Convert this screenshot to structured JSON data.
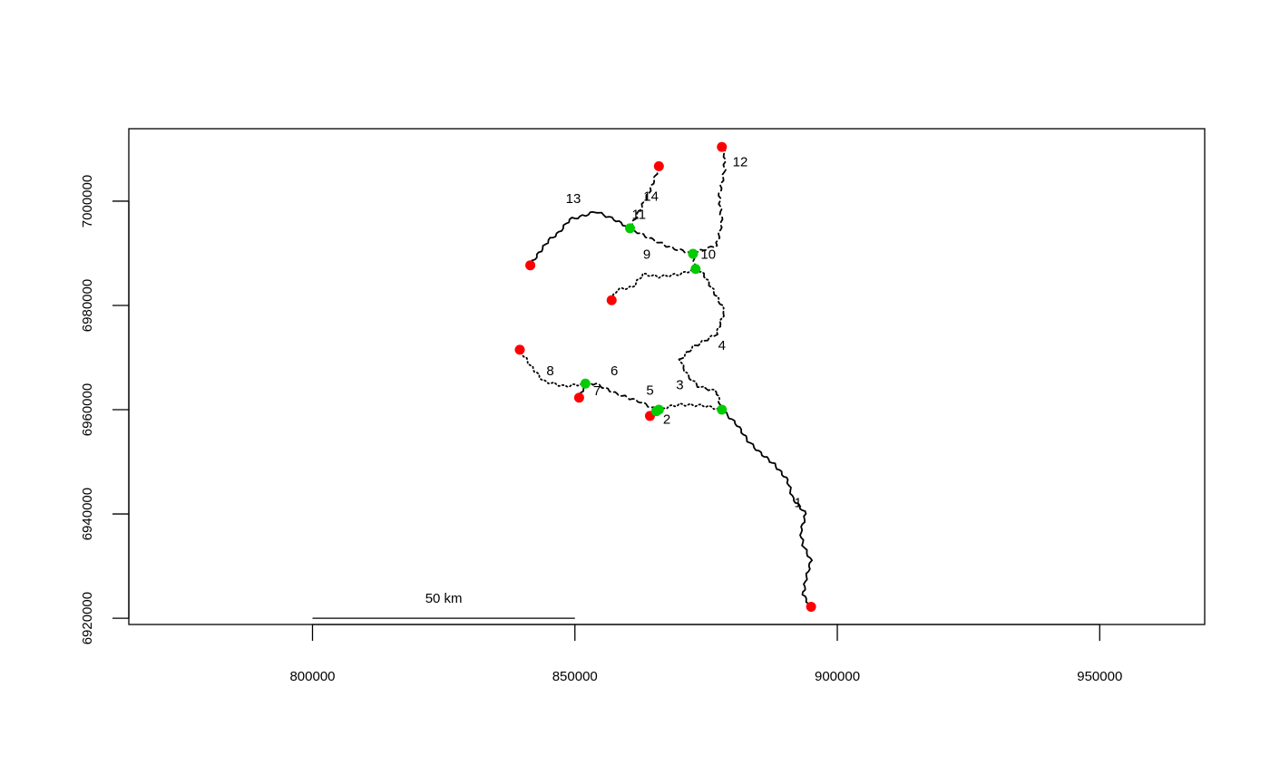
{
  "chart_data": {
    "type": "map",
    "title": "",
    "xlabel": "",
    "ylabel": "",
    "xlim": [
      765000,
      970000
    ],
    "ylim": [
      6918800,
      7013900
    ],
    "x_ticks": [
      {
        "value": 800000,
        "label": "800000"
      },
      {
        "value": 850000,
        "label": "850000"
      },
      {
        "value": 900000,
        "label": "900000"
      },
      {
        "value": 950000,
        "label": "950000"
      }
    ],
    "y_ticks": [
      {
        "value": 6920000,
        "label": "6920000"
      },
      {
        "value": 6940000,
        "label": "6940000"
      },
      {
        "value": 6960000,
        "label": "6960000"
      },
      {
        "value": 6980000,
        "label": "6980000"
      },
      {
        "value": 7000000,
        "label": "7000000"
      }
    ],
    "scale_bar": {
      "x_start": 800000,
      "x_end": 850000,
      "y": 6920000,
      "label": "50 km"
    },
    "colors": {
      "outlet": "#ff0000",
      "confluence": "#00cc00",
      "line": "#000000"
    },
    "segments": [
      {
        "id": "1",
        "style": "solid",
        "label_pos": [
          892500,
          6942000
        ],
        "points": [
          [
            895000,
            6922000
          ],
          [
            893500,
            6924500
          ],
          [
            894000,
            6927500
          ],
          [
            895000,
            6931000
          ],
          [
            893500,
            6934000
          ],
          [
            893000,
            6936500
          ],
          [
            894000,
            6940000
          ],
          [
            891500,
            6943000
          ],
          [
            890500,
            6946500
          ],
          [
            888000,
            6949500
          ],
          [
            885000,
            6952000
          ],
          [
            883000,
            6954000
          ],
          [
            881000,
            6957000
          ],
          [
            878000,
            6960000
          ]
        ]
      },
      {
        "id": "2",
        "style": "dashed",
        "label_pos": [
          867500,
          6958000
        ],
        "points": [
          [
            866000,
            6960000
          ],
          [
            864300,
            6958800
          ]
        ]
      },
      {
        "id": "3",
        "style": "dotted",
        "label_pos": [
          870000,
          6964600
        ],
        "points": [
          [
            878000,
            6960000
          ],
          [
            874500,
            6960800
          ],
          [
            870000,
            6961000
          ],
          [
            867500,
            6960500
          ],
          [
            866000,
            6960000
          ]
        ]
      },
      {
        "id": "4",
        "style": "dotdash",
        "label_pos": [
          878000,
          6972200
        ],
        "points": [
          [
            878000,
            6960000
          ],
          [
            877000,
            6963500
          ],
          [
            873500,
            6964500
          ],
          [
            871500,
            6966500
          ],
          [
            870000,
            6969500
          ],
          [
            872500,
            6972000
          ],
          [
            877000,
            6974500
          ],
          [
            878500,
            6979000
          ],
          [
            876000,
            6983500
          ],
          [
            874500,
            6986000
          ],
          [
            873000,
            6987000
          ]
        ]
      },
      {
        "id": "5",
        "style": "solid",
        "label_pos": [
          864300,
          6963600
        ],
        "points": [
          [
            866000,
            6960000
          ],
          [
            865500,
            6960000
          ]
        ]
      },
      {
        "id": "6",
        "style": "dashed",
        "label_pos": [
          857500,
          6967300
        ],
        "points": [
          [
            865500,
            6960000
          ],
          [
            862500,
            6961500
          ],
          [
            858000,
            6963000
          ],
          [
            854000,
            6965000
          ],
          [
            852000,
            6965000
          ]
        ]
      },
      {
        "id": "7",
        "style": "solid",
        "label_pos": [
          854200,
          6963500
        ],
        "points": [
          [
            852000,
            6965000
          ],
          [
            850800,
            6962300
          ]
        ]
      },
      {
        "id": "8",
        "style": "dotted",
        "label_pos": [
          845300,
          6967300
        ],
        "points": [
          [
            852000,
            6965000
          ],
          [
            848000,
            6964500
          ],
          [
            844000,
            6965500
          ],
          [
            841500,
            6968500
          ],
          [
            839500,
            6971500
          ]
        ]
      },
      {
        "id": "9",
        "style": "dotted",
        "label_pos": [
          863700,
          6989600
        ],
        "points": [
          [
            873000,
            6987000
          ],
          [
            870000,
            6986000
          ],
          [
            866000,
            6985500
          ],
          [
            863000,
            6986000
          ],
          [
            861000,
            6983500
          ],
          [
            858000,
            6983000
          ],
          [
            857000,
            6981000
          ]
        ]
      },
      {
        "id": "10",
        "style": "dashed",
        "label_pos": [
          875400,
          6989600
        ],
        "points": [
          [
            873000,
            6987000
          ],
          [
            872500,
            6990000
          ]
        ]
      },
      {
        "id": "11",
        "style": "dashed",
        "label_pos": [
          862200,
          6997300
        ],
        "points": [
          [
            872500,
            6990000
          ],
          [
            868500,
            6991000
          ],
          [
            865000,
            6992500
          ],
          [
            863000,
            6993500
          ],
          [
            860500,
            6994800
          ]
        ]
      },
      {
        "id": "12",
        "style": "dashed",
        "label_pos": [
          881500,
          7007400
        ],
        "points": [
          [
            872500,
            6990000
          ],
          [
            877000,
            6991500
          ],
          [
            878000,
            6996000
          ],
          [
            877500,
            7001000
          ],
          [
            878500,
            7006000
          ],
          [
            878500,
            7009500
          ],
          [
            878000,
            7010500
          ]
        ]
      },
      {
        "id": "13",
        "style": "solid",
        "label_pos": [
          849700,
          7000300
        ],
        "points": [
          [
            860500,
            6994800
          ],
          [
            857500,
            6996500
          ],
          [
            854000,
            6998000
          ],
          [
            851000,
            6997000
          ],
          [
            849000,
            6996500
          ],
          [
            847000,
            6994000
          ],
          [
            845000,
            6992500
          ],
          [
            843500,
            6990500
          ],
          [
            842000,
            6988500
          ],
          [
            841500,
            6987700
          ]
        ]
      },
      {
        "id": "14",
        "style": "dashed",
        "label_pos": [
          864500,
          7000800
        ],
        "points": [
          [
            860500,
            6994800
          ],
          [
            862500,
            6998500
          ],
          [
            864500,
            7002500
          ],
          [
            866000,
            7006700
          ]
        ]
      }
    ],
    "outlets": [
      {
        "x": 895000,
        "y": 6922200
      },
      {
        "x": 864300,
        "y": 6958800
      },
      {
        "x": 850800,
        "y": 6962300
      },
      {
        "x": 839500,
        "y": 6971500
      },
      {
        "x": 857000,
        "y": 6981000
      },
      {
        "x": 841500,
        "y": 6987700
      },
      {
        "x": 866000,
        "y": 7006700
      },
      {
        "x": 878000,
        "y": 7010400
      }
    ],
    "confluences": [
      {
        "x": 878000,
        "y": 6960000
      },
      {
        "x": 866000,
        "y": 6960000
      },
      {
        "x": 865500,
        "y": 6959700
      },
      {
        "x": 852000,
        "y": 6965000
      },
      {
        "x": 873000,
        "y": 6987000
      },
      {
        "x": 872500,
        "y": 6989900
      },
      {
        "x": 860500,
        "y": 6994800
      }
    ]
  }
}
